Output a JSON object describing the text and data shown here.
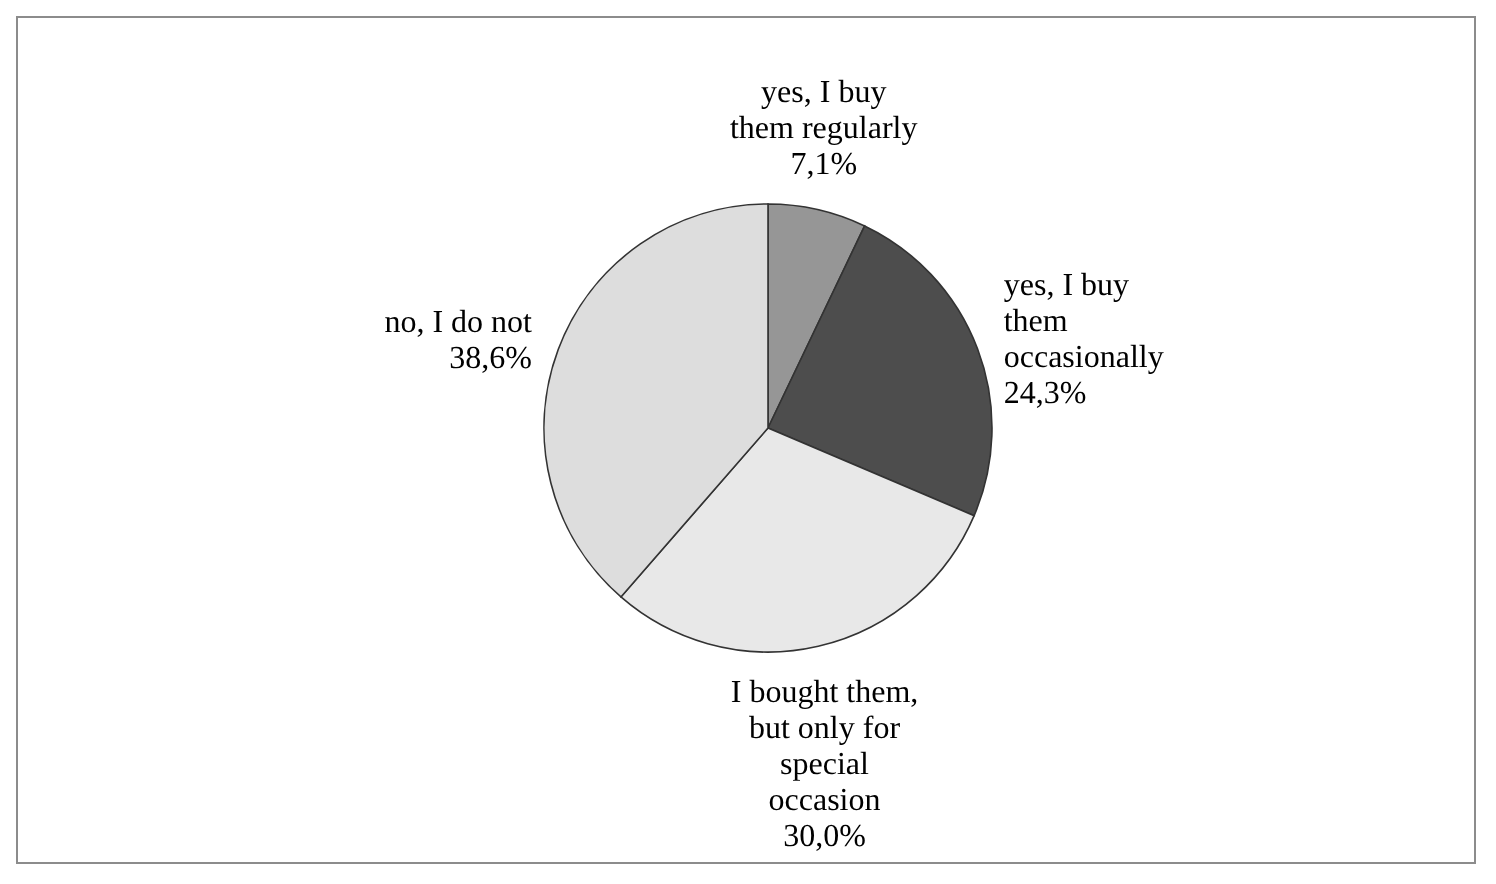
{
  "chart_data": {
    "type": "pie",
    "categories": [
      "yes, I buy them regularly",
      "yes, I buy them occasionally",
      "I bought them, but only for special occasion",
      "no, I do not"
    ],
    "values": [
      7.1,
      24.3,
      30.0,
      38.6
    ],
    "colors": [
      "#969696",
      "#4d4d4d",
      "#e8e8e8",
      "#dddddd"
    ],
    "value_labels": [
      "7,1%",
      "24,3%",
      "30,0%",
      "38,6%"
    ]
  }
}
